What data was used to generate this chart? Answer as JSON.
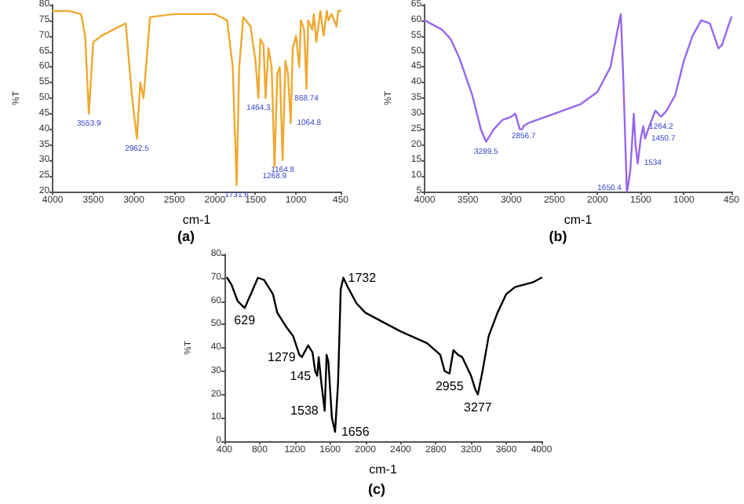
{
  "chart_data": [
    {
      "type": "line",
      "title": "(a)",
      "xlabel": "cm-1",
      "ylabel": "%T",
      "xlim": [
        4000,
        450
      ],
      "xticks": [
        4000,
        3500,
        3000,
        2500,
        2000,
        1500,
        1000,
        450
      ],
      "ylim": [
        20,
        80
      ],
      "yticks": [
        20,
        25,
        30,
        35,
        40,
        45,
        50,
        55,
        60,
        65,
        70,
        75,
        80
      ],
      "grid": false,
      "marker": "none",
      "series": [
        {
          "color": "#f0a830",
          "x": [
            4000,
            3800,
            3650,
            3600,
            3554,
            3500,
            3400,
            3100,
            3020,
            2962,
            2920,
            2880,
            2800,
            2500,
            2000,
            1850,
            1780,
            1732,
            1700,
            1650,
            1560,
            1500,
            1464,
            1440,
            1400,
            1375,
            1340,
            1300,
            1265,
            1230,
            1200,
            1165,
            1130,
            1100,
            1065,
            1040,
            1000,
            960,
            940,
            900,
            870,
            850,
            800,
            780,
            750,
            700,
            660,
            620,
            600,
            560,
            500,
            480,
            450
          ],
          "values": [
            78,
            78,
            77,
            70,
            45,
            68,
            70,
            74,
            50,
            37,
            55,
            50,
            76,
            77,
            77,
            75,
            60,
            22,
            60,
            76,
            73,
            62,
            50,
            69,
            67,
            50,
            66,
            60,
            28,
            58,
            60,
            30,
            62,
            58,
            42,
            66,
            70,
            60,
            75,
            72,
            53,
            75,
            72,
            77,
            68,
            78,
            70,
            78,
            75,
            77,
            73,
            78,
            78
          ]
        }
      ],
      "annotations": [
        {
          "text": "3553.9",
          "x": 3554,
          "y": 45
        },
        {
          "text": "2962.5",
          "x": 2962,
          "y": 37
        },
        {
          "text": "1731.6",
          "x": 1732,
          "y": 22
        },
        {
          "text": "1464.3",
          "x": 1464,
          "y": 50
        },
        {
          "text": "1268.9",
          "x": 1265,
          "y": 28
        },
        {
          "text": "1164.8",
          "x": 1165,
          "y": 30
        },
        {
          "text": "1064.8",
          "x": 1065,
          "y": 42
        },
        {
          "text": "868.74",
          "x": 870,
          "y": 53
        }
      ]
    },
    {
      "type": "line",
      "title": "(b)",
      "xlabel": "cm-1",
      "ylabel": "%T",
      "xlim": [
        4000,
        450
      ],
      "xticks": [
        4000,
        3500,
        3000,
        2500,
        2000,
        1500,
        1000,
        450
      ],
      "ylim": [
        5,
        65
      ],
      "yticks": [
        5,
        10,
        15,
        20,
        25,
        30,
        35,
        40,
        45,
        50,
        55,
        60,
        65
      ],
      "grid": false,
      "marker": "none",
      "series": [
        {
          "color": "#9966ee",
          "x": [
            4000,
            3800,
            3700,
            3600,
            3450,
            3350,
            3290,
            3200,
            3100,
            3000,
            2950,
            2900,
            2870,
            2856,
            2800,
            2500,
            2200,
            2000,
            1850,
            1760,
            1730,
            1700,
            1660,
            1650,
            1620,
            1580,
            1560,
            1534,
            1500,
            1470,
            1450,
            1400,
            1330,
            1264,
            1200,
            1100,
            1000,
            900,
            800,
            700,
            650,
            600,
            560,
            500,
            450
          ],
          "values": [
            60,
            57,
            54,
            48,
            36,
            25,
            21,
            25,
            28,
            29,
            30,
            25,
            25,
            26,
            27,
            30,
            33,
            37,
            45,
            58,
            62,
            40,
            5,
            6,
            12,
            30,
            20,
            14,
            22,
            26,
            22,
            26,
            31,
            29,
            31,
            36,
            47,
            55,
            60,
            59,
            55,
            51,
            52,
            57,
            61
          ]
        }
      ],
      "annotations": [
        {
          "text": "3289.5",
          "x": 3290,
          "y": 21
        },
        {
          "text": "2856.7",
          "x": 2856,
          "y": 26
        },
        {
          "text": "1650.4",
          "x": 1650,
          "y": 6
        },
        {
          "text": "1534",
          "x": 1534,
          "y": 14
        },
        {
          "text": "1450.7",
          "x": 1450,
          "y": 22
        },
        {
          "text": "1264.2",
          "x": 1264,
          "y": 29
        }
      ]
    },
    {
      "type": "line",
      "title": "(c)",
      "xlabel": "cm-1",
      "ylabel": "%T",
      "xlim": [
        400,
        4000
      ],
      "xticks": [
        400,
        800,
        1200,
        1600,
        2000,
        2400,
        2800,
        3200,
        3600,
        4000
      ],
      "ylim": [
        0,
        80
      ],
      "yticks": [
        0,
        10,
        20,
        30,
        40,
        50,
        60,
        70,
        80
      ],
      "grid": false,
      "marker": "none",
      "series": [
        {
          "color": "#000000",
          "x": [
            430,
            480,
            550,
            629,
            700,
            780,
            850,
            950,
            1000,
            1100,
            1180,
            1250,
            1279,
            1350,
            1400,
            1430,
            1454,
            1470,
            1500,
            1538,
            1560,
            1580,
            1620,
            1656,
            1690,
            1720,
            1750,
            1800,
            1900,
            2000,
            2400,
            2700,
            2850,
            2900,
            2955,
            3000,
            3050,
            3100,
            3200,
            3250,
            3277,
            3330,
            3400,
            3500,
            3600,
            3700,
            3800,
            3900,
            4000
          ],
          "values": [
            70,
            67,
            60,
            57,
            63,
            70,
            69,
            63,
            55,
            49,
            45,
            37,
            36,
            41,
            38,
            30,
            28,
            36,
            25,
            13,
            37,
            34,
            10,
            4,
            25,
            65,
            70,
            66,
            59,
            55,
            47,
            42,
            37,
            30,
            29,
            39,
            37,
            36,
            28,
            22,
            20,
            30,
            45,
            55,
            63,
            66,
            67,
            68,
            70
          ]
        }
      ],
      "annotations": [
        {
          "text": "629",
          "x": 629,
          "y": 57
        },
        {
          "text": "1279",
          "x": 1279,
          "y": 36
        },
        {
          "text": "145",
          "x": 1454,
          "y": 28
        },
        {
          "text": "1538",
          "x": 1538,
          "y": 13
        },
        {
          "text": "1656",
          "x": 1656,
          "y": 4
        },
        {
          "text": "1732",
          "x": 1732,
          "y": 70
        },
        {
          "text": "2955",
          "x": 2955,
          "y": 29
        },
        {
          "text": "3277",
          "x": 3277,
          "y": 20
        }
      ]
    }
  ]
}
